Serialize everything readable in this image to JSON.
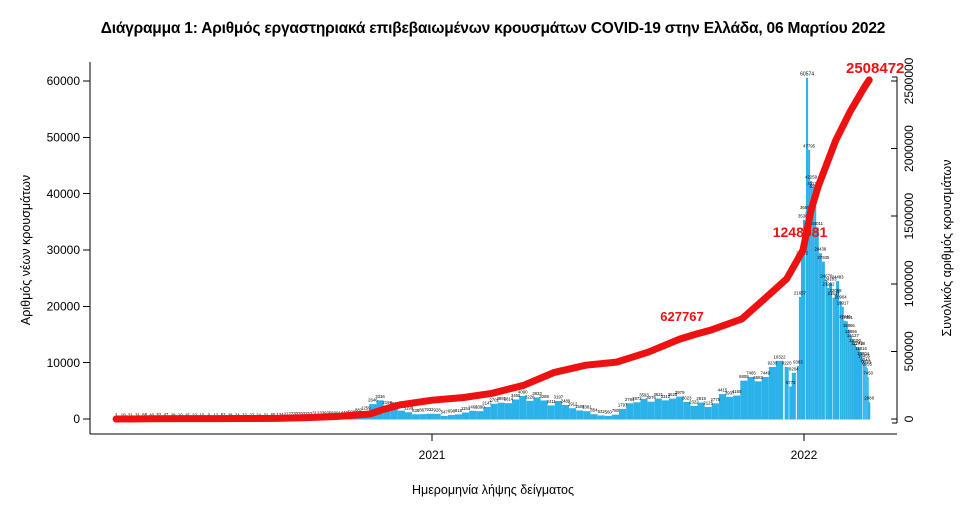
{
  "title": "Διάγραμμα 1: Αριθμός εργαστηριακά επιβεβαιωμένων κρουσμάτων COVID-19 στην Ελλάδα, 06 Μαρτίου 2022",
  "chart_data": {
    "type": "bar+line",
    "title": "Διάγραμμα 1: Αριθμός εργαστηριακά επιβεβαιωμένων κρουσμάτων COVID-19 στην Ελλάδα, 06 Μαρτίου 2022",
    "xlabel": "Ημερομηνία λήψης δείγματος",
    "ylabel_left": "Αριθμός νέων κρουσμάτων",
    "ylabel_right": "Συνολικός αριθμός κρουσμάτων",
    "bar_color": "#2bb2e9",
    "line_color": "#ee1111",
    "label_color": "#000000",
    "x_range": [
      "2020-02-26",
      "2022-03-06"
    ],
    "x_ticks": [
      {
        "label": "2021",
        "date": "2021-01-01"
      },
      {
        "label": "2022",
        "date": "2022-01-01"
      }
    ],
    "y_left": {
      "min": 0,
      "max": 60000,
      "ticks": [
        0,
        10000,
        20000,
        30000,
        40000,
        50000,
        60000
      ]
    },
    "y_right": {
      "min": 0,
      "max": 2500000,
      "ticks": [
        0,
        500000,
        1000000,
        1500000,
        2000000,
        2500000
      ]
    },
    "grid": false,
    "legend": "none",
    "bars": [
      {
        "d": "2020-02-26",
        "v": 3
      },
      {
        "d": "2020-03-04",
        "v": 10
      },
      {
        "d": "2020-03-11",
        "v": 31
      },
      {
        "d": "2020-03-18",
        "v": 31
      },
      {
        "d": "2020-03-25",
        "v": 68
      },
      {
        "d": "2020-04-01",
        "v": 40
      },
      {
        "d": "2020-04-08",
        "v": 52
      },
      {
        "d": "2020-04-15",
        "v": 47
      },
      {
        "d": "2020-04-22",
        "v": 28
      },
      {
        "d": "2020-04-29",
        "v": 10
      },
      {
        "d": "2020-05-06",
        "v": 15
      },
      {
        "d": "2020-05-13",
        "v": 22
      },
      {
        "d": "2020-05-20",
        "v": 10
      },
      {
        "d": "2020-05-27",
        "v": 9
      },
      {
        "d": "2020-06-03",
        "v": 12
      },
      {
        "d": "2020-06-10",
        "v": 52
      },
      {
        "d": "2020-06-17",
        "v": 28
      },
      {
        "d": "2020-06-24",
        "v": 24
      },
      {
        "d": "2020-07-01",
        "v": 32
      },
      {
        "d": "2020-07-08",
        "v": 27
      },
      {
        "d": "2020-07-15",
        "v": 24
      },
      {
        "d": "2020-07-22",
        "v": 31
      },
      {
        "d": "2020-07-29",
        "v": 65
      },
      {
        "d": "2020-08-05",
        "v": 124
      },
      {
        "d": "2020-08-12",
        "v": 217
      },
      {
        "d": "2020-08-19",
        "v": 230
      },
      {
        "d": "2020-08-26",
        "v": 293
      },
      {
        "d": "2020-09-02",
        "v": 252
      },
      {
        "d": "2020-09-09",
        "v": 312
      },
      {
        "d": "2020-09-16",
        "v": 339
      },
      {
        "d": "2020-09-23",
        "v": 358
      },
      {
        "d": "2020-09-30",
        "v": 391
      },
      {
        "d": "2020-10-07",
        "v": 442
      },
      {
        "d": "2020-10-14",
        "v": 508
      },
      {
        "d": "2020-10-21",
        "v": 882
      },
      {
        "d": "2020-10-28",
        "v": 1259
      },
      {
        "d": "2020-11-04",
        "v": 2646
      },
      {
        "d": "2020-11-11",
        "v": 3316
      },
      {
        "d": "2020-11-18",
        "v": 2198
      },
      {
        "d": "2020-11-25",
        "v": 2018
      },
      {
        "d": "2020-12-02",
        "v": 1489
      },
      {
        "d": "2020-12-09",
        "v": 1199
      },
      {
        "d": "2020-12-16",
        "v": 838
      },
      {
        "d": "2020-12-23",
        "v": 867
      },
      {
        "d": "2020-12-30",
        "v": 932
      },
      {
        "d": "2021-01-06",
        "v": 928
      },
      {
        "d": "2021-01-13",
        "v": 547
      },
      {
        "d": "2021-01-20",
        "v": 698
      },
      {
        "d": "2021-01-27",
        "v": 816
      },
      {
        "d": "2021-02-03",
        "v": 1151
      },
      {
        "d": "2021-02-10",
        "v": 1460
      },
      {
        "d": "2021-02-17",
        "v": 1390
      },
      {
        "d": "2021-02-24",
        "v": 2147
      },
      {
        "d": "2021-03-03",
        "v": 2702
      },
      {
        "d": "2021-03-10",
        "v": 2891
      },
      {
        "d": "2021-03-17",
        "v": 2814
      },
      {
        "d": "2021-03-24",
        "v": 3465
      },
      {
        "d": "2021-03-31",
        "v": 4090
      },
      {
        "d": "2021-04-07",
        "v": 3228
      },
      {
        "d": "2021-04-14",
        "v": 3833
      },
      {
        "d": "2021-04-21",
        "v": 3288
      },
      {
        "d": "2021-04-28",
        "v": 2411
      },
      {
        "d": "2021-05-05",
        "v": 3197
      },
      {
        "d": "2021-05-12",
        "v": 2489
      },
      {
        "d": "2021-05-19",
        "v": 1912
      },
      {
        "d": "2021-05-26",
        "v": 1508
      },
      {
        "d": "2021-06-02",
        "v": 1381
      },
      {
        "d": "2021-06-09",
        "v": 854
      },
      {
        "d": "2021-06-16",
        "v": 632
      },
      {
        "d": "2021-06-23",
        "v": 560
      },
      {
        "d": "2021-06-30",
        "v": 780
      },
      {
        "d": "2021-07-07",
        "v": 1797
      },
      {
        "d": "2021-07-14",
        "v": 2781
      },
      {
        "d": "2021-07-21",
        "v": 2972
      },
      {
        "d": "2021-07-28",
        "v": 3593
      },
      {
        "d": "2021-08-04",
        "v": 3076
      },
      {
        "d": "2021-08-11",
        "v": 3621
      },
      {
        "d": "2021-08-18",
        "v": 3312
      },
      {
        "d": "2021-08-25",
        "v": 3628
      },
      {
        "d": "2021-09-01",
        "v": 3979
      },
      {
        "d": "2021-09-08",
        "v": 3023
      },
      {
        "d": "2021-09-15",
        "v": 2322
      },
      {
        "d": "2021-09-22",
        "v": 2919
      },
      {
        "d": "2021-09-29",
        "v": 2125
      },
      {
        "d": "2021-10-06",
        "v": 2775
      },
      {
        "d": "2021-10-13",
        "v": 4415
      },
      {
        "d": "2021-10-20",
        "v": 3937
      },
      {
        "d": "2021-10-27",
        "v": 4165
      },
      {
        "d": "2021-11-03",
        "v": 6808
      },
      {
        "d": "2021-11-10",
        "v": 7465
      },
      {
        "d": "2021-11-17",
        "v": 6682
      },
      {
        "d": "2021-11-24",
        "v": 7449
      },
      {
        "d": "2021-12-01",
        "v": 9230
      },
      {
        "d": "2021-12-08",
        "v": 10322
      },
      {
        "d": "2021-12-15",
        "v": 9220
      },
      {
        "d": "2021-12-19",
        "v": 5772
      },
      {
        "d": "2021-12-22",
        "v": 8204
      },
      {
        "d": "2021-12-26",
        "v": 9383
      },
      {
        "d": "2021-12-28",
        "v": 21657
      },
      {
        "d": "2021-12-30",
        "v": 28722
      },
      {
        "d": "2022-01-01",
        "v": 35367
      },
      {
        "d": "2022-01-03",
        "v": 36852
      },
      {
        "d": "2022-01-04",
        "v": 60574
      },
      {
        "d": "2022-01-06",
        "v": 47795
      },
      {
        "d": "2022-01-08",
        "v": 42259
      },
      {
        "d": "2022-01-10",
        "v": 41136
      },
      {
        "d": "2022-01-12",
        "v": 40560
      },
      {
        "d": "2022-01-14",
        "v": 34011
      },
      {
        "d": "2022-01-17",
        "v": 29438
      },
      {
        "d": "2022-01-20",
        "v": 27935
      },
      {
        "d": "2022-01-23",
        "v": 24676
      },
      {
        "d": "2022-01-25",
        "v": 23262
      },
      {
        "d": "2022-01-27",
        "v": 24103
      },
      {
        "d": "2022-01-30",
        "v": 21547
      },
      {
        "d": "2022-02-01",
        "v": 22068
      },
      {
        "d": "2022-02-03",
        "v": 24483
      },
      {
        "d": "2022-02-06",
        "v": 20904
      },
      {
        "d": "2022-02-08",
        "v": 19917
      },
      {
        "d": "2022-02-10",
        "v": 17446
      },
      {
        "d": "2022-02-12",
        "v": 17351
      },
      {
        "d": "2022-02-14",
        "v": 15866
      },
      {
        "d": "2022-02-16",
        "v": 14856
      },
      {
        "d": "2022-02-18",
        "v": 14127
      },
      {
        "d": "2022-02-20",
        "v": 13190
      },
      {
        "d": "2022-02-22",
        "v": 12749
      },
      {
        "d": "2022-02-24",
        "v": 12718
      },
      {
        "d": "2022-02-26",
        "v": 11816
      },
      {
        "d": "2022-02-28",
        "v": 10904
      },
      {
        "d": "2022-03-01",
        "v": 10455
      },
      {
        "d": "2022-03-02",
        "v": 9740
      },
      {
        "d": "2022-03-03",
        "v": 9373
      },
      {
        "d": "2022-03-04",
        "v": 9055
      },
      {
        "d": "2022-03-05",
        "v": 7450
      },
      {
        "d": "2022-03-06",
        "v": 2988
      }
    ],
    "cumulative": [
      {
        "d": "2020-02-26",
        "v": 1
      },
      {
        "d": "2020-04-01",
        "v": 1314
      },
      {
        "d": "2020-05-01",
        "v": 2591
      },
      {
        "d": "2020-06-01",
        "v": 2917
      },
      {
        "d": "2020-07-01",
        "v": 3409
      },
      {
        "d": "2020-08-01",
        "v": 4477
      },
      {
        "d": "2020-09-01",
        "v": 10134
      },
      {
        "d": "2020-10-01",
        "v": 18886
      },
      {
        "d": "2020-11-01",
        "v": 37196
      },
      {
        "d": "2020-11-15",
        "v": 72510
      },
      {
        "d": "2020-12-01",
        "v": 105271
      },
      {
        "d": "2021-01-01",
        "v": 138850
      },
      {
        "d": "2021-02-01",
        "v": 158716
      },
      {
        "d": "2021-03-01",
        "v": 190235
      },
      {
        "d": "2021-04-01",
        "v": 249458
      },
      {
        "d": "2021-05-01",
        "v": 344917
      },
      {
        "d": "2021-06-01",
        "v": 398278
      },
      {
        "d": "2021-07-01",
        "v": 420978
      },
      {
        "d": "2021-08-01",
        "v": 494195
      },
      {
        "d": "2021-09-01",
        "v": 590832
      },
      {
        "d": "2021-09-17",
        "v": 627767
      },
      {
        "d": "2021-10-01",
        "v": 655767
      },
      {
        "d": "2021-11-01",
        "v": 739905
      },
      {
        "d": "2021-12-01",
        "v": 940689
      },
      {
        "d": "2021-12-15",
        "v": 1037184
      },
      {
        "d": "2021-12-31",
        "v": 1248981
      },
      {
        "d": "2022-01-08",
        "v": 1547496
      },
      {
        "d": "2022-01-15",
        "v": 1722922
      },
      {
        "d": "2022-02-01",
        "v": 2058563
      },
      {
        "d": "2022-02-15",
        "v": 2270571
      },
      {
        "d": "2022-03-01",
        "v": 2450631
      },
      {
        "d": "2022-03-06",
        "v": 2508472
      }
    ],
    "annotations": [
      {
        "text": "627767",
        "d": "2021-09-17",
        "v": 627767
      },
      {
        "text": "1248981",
        "d": "2021-12-31",
        "v": 1248981
      },
      {
        "text": "2508472",
        "d": "2022-03-06",
        "v": 2508472
      }
    ],
    "peak_bar": {
      "label": "60574",
      "d": "2022-01-04",
      "v": 60574
    }
  }
}
